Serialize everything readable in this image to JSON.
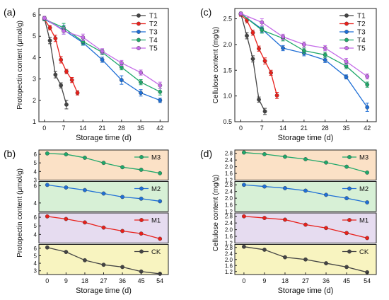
{
  "colors": {
    "T1": "#444444",
    "T2": "#e8201b",
    "T3": "#1f6fd6",
    "T4": "#1fa86a",
    "T5": "#c46ae8",
    "M3": "#1fa86a",
    "M2": "#1f6fd6",
    "M1": "#e8201b",
    "CK": "#444444",
    "band_M3": "#fbe1c6",
    "band_M2": "#d7f0d6",
    "band_M1": "#e6dcf0",
    "band_CK": "#f8f4c0"
  },
  "chart_data": [
    {
      "panel": "(a)",
      "type": "line",
      "xlabel": "Storage time (d)",
      "ylabel": "Protopectin content (μmol/g)",
      "xlim": [
        -2,
        45
      ],
      "ylim": [
        1,
        6.3
      ],
      "xticks": [
        0,
        7,
        14,
        21,
        28,
        35,
        42
      ],
      "yticks": [
        1,
        2,
        3,
        4,
        5,
        6
      ],
      "legend": "top-right",
      "series": [
        {
          "name": "T1",
          "x": [
            0,
            2,
            4,
            6,
            8
          ],
          "values": [
            5.85,
            4.8,
            3.2,
            2.7,
            1.8
          ],
          "err": [
            0.08,
            0.15,
            0.15,
            0.12,
            0.2
          ]
        },
        {
          "name": "T2",
          "x": [
            0,
            2,
            4,
            6,
            8,
            10,
            12
          ],
          "values": [
            5.8,
            5.4,
            4.9,
            3.9,
            3.35,
            2.95,
            2.35
          ],
          "err": [
            0.08,
            0.1,
            0.15,
            0.15,
            0.1,
            0.12,
            0.1
          ]
        },
        {
          "name": "T3",
          "x": [
            0,
            7,
            14,
            21,
            28,
            35,
            42
          ],
          "values": [
            5.8,
            5.3,
            4.7,
            3.9,
            2.95,
            2.35,
            2.0
          ],
          "err": [
            0.08,
            0.2,
            0.12,
            0.12,
            0.2,
            0.15,
            0.1
          ]
        },
        {
          "name": "T4",
          "x": [
            0,
            7,
            14,
            21,
            28,
            35,
            42
          ],
          "values": [
            5.8,
            5.4,
            4.75,
            4.25,
            3.55,
            2.85,
            2.4
          ],
          "err": [
            0.08,
            0.2,
            0.15,
            0.12,
            0.12,
            0.12,
            0.15
          ]
        },
        {
          "name": "T5",
          "x": [
            0,
            7,
            14,
            21,
            28,
            35,
            42
          ],
          "values": [
            5.85,
            5.25,
            4.95,
            4.3,
            3.75,
            3.3,
            2.7
          ],
          "err": [
            0.08,
            0.15,
            0.15,
            0.12,
            0.12,
            0.12,
            0.15
          ]
        }
      ]
    },
    {
      "panel": "(c)",
      "type": "line",
      "xlabel": "Storage time (d)",
      "ylabel": "Cellulose content (mg/g)",
      "xlim": [
        -2,
        45
      ],
      "ylim": [
        0.5,
        2.7
      ],
      "xticks": [
        0,
        7,
        14,
        21,
        28,
        35,
        42
      ],
      "yticks": [
        0.5,
        1.0,
        1.5,
        2.0,
        2.5
      ],
      "legend": "top-right",
      "series": [
        {
          "name": "T1",
          "x": [
            0,
            2,
            4,
            6,
            8
          ],
          "values": [
            2.6,
            2.17,
            1.72,
            0.93,
            0.7
          ],
          "err": [
            0.03,
            0.06,
            0.06,
            0.05,
            0.06
          ]
        },
        {
          "name": "T2",
          "x": [
            0,
            2,
            4,
            6,
            8,
            10,
            12
          ],
          "values": [
            2.58,
            2.47,
            2.23,
            1.92,
            1.68,
            1.45,
            1.01
          ],
          "err": [
            0.03,
            0.05,
            0.05,
            0.05,
            0.06,
            0.05,
            0.06
          ]
        },
        {
          "name": "T3",
          "x": [
            0,
            7,
            14,
            21,
            28,
            35,
            42
          ],
          "values": [
            2.6,
            2.3,
            1.93,
            1.83,
            1.7,
            1.37,
            0.78
          ],
          "err": [
            0.03,
            0.06,
            0.05,
            0.05,
            0.05,
            0.04,
            0.08
          ]
        },
        {
          "name": "T4",
          "x": [
            0,
            7,
            14,
            21,
            28,
            35,
            42
          ],
          "values": [
            2.6,
            2.28,
            2.12,
            1.88,
            1.8,
            1.58,
            1.22
          ],
          "err": [
            0.03,
            0.06,
            0.05,
            0.05,
            0.05,
            0.05,
            0.05
          ]
        },
        {
          "name": "T5",
          "x": [
            0,
            7,
            14,
            21,
            28,
            35,
            42
          ],
          "values": [
            2.6,
            2.43,
            2.15,
            2.0,
            1.93,
            1.67,
            1.38
          ],
          "err": [
            0.03,
            0.07,
            0.05,
            0.05,
            0.05,
            0.06,
            0.05
          ]
        }
      ]
    },
    {
      "panel": "(b)",
      "type": "line",
      "xlabel": "Storage time (d)",
      "ylabel": "Protopectin content (μmol/g)",
      "x": [
        0,
        9,
        18,
        27,
        36,
        45,
        54
      ],
      "xlim": [
        -4,
        58
      ],
      "xticks": [
        0,
        9,
        18,
        27,
        36,
        45,
        54
      ],
      "legend": "inside each band, right",
      "series": [
        {
          "name": "M3",
          "ylim": [
            3,
            6.5
          ],
          "yticks": [
            3,
            4,
            5,
            6
          ],
          "values": [
            6.1,
            6.0,
            5.6,
            5.0,
            4.5,
            4.2,
            3.8
          ]
        },
        {
          "name": "M2",
          "ylim": [
            3,
            6.5
          ],
          "yticks": [
            4,
            6
          ],
          "values": [
            6.1,
            5.8,
            5.5,
            5.1,
            4.7,
            4.5,
            4.2
          ]
        },
        {
          "name": "M1",
          "ylim": [
            3,
            6.5
          ],
          "yticks": [
            4,
            5,
            6
          ],
          "values": [
            6.1,
            5.8,
            5.4,
            4.8,
            4.4,
            4.1,
            3.5
          ]
        },
        {
          "name": "CK",
          "ylim": [
            2.5,
            6.5
          ],
          "yticks": [
            3,
            4,
            5,
            6
          ],
          "values": [
            6.1,
            5.5,
            4.4,
            3.8,
            3.5,
            2.9,
            2.6
          ]
        }
      ]
    },
    {
      "panel": "(d)",
      "type": "line",
      "xlabel": "Storage time (d)",
      "ylabel": "Cellulose content (mg/g)",
      "x": [
        0,
        9,
        18,
        27,
        36,
        45,
        54
      ],
      "xlim": [
        -4,
        58
      ],
      "xticks": [
        0,
        9,
        18,
        27,
        36,
        45,
        54
      ],
      "legend": "inside each band, right",
      "series": [
        {
          "name": "M3",
          "ylim": [
            1.2,
            3.0
          ],
          "yticks": [
            1.2,
            1.6,
            2.0,
            2.4,
            2.8
          ],
          "values": [
            2.85,
            2.75,
            2.6,
            2.45,
            2.25,
            2.0,
            1.65
          ]
        },
        {
          "name": "M2",
          "ylim": [
            1.2,
            3.0
          ],
          "yticks": [
            1.2,
            1.6,
            2.0,
            2.4,
            2.8
          ],
          "values": [
            2.8,
            2.7,
            2.6,
            2.45,
            2.2,
            2.0,
            1.75
          ]
        },
        {
          "name": "M1",
          "ylim": [
            1.2,
            3.0
          ],
          "yticks": [
            1.2,
            1.6,
            2.0,
            2.4,
            2.8
          ],
          "values": [
            2.8,
            2.7,
            2.6,
            2.3,
            2.1,
            1.8,
            1.5
          ]
        },
        {
          "name": "CK",
          "ylim": [
            1.0,
            3.0
          ],
          "yticks": [
            1.2,
            1.6,
            2.0,
            2.4,
            2.8
          ],
          "values": [
            2.85,
            2.65,
            2.15,
            2.0,
            1.75,
            1.5,
            1.15
          ]
        }
      ]
    }
  ]
}
